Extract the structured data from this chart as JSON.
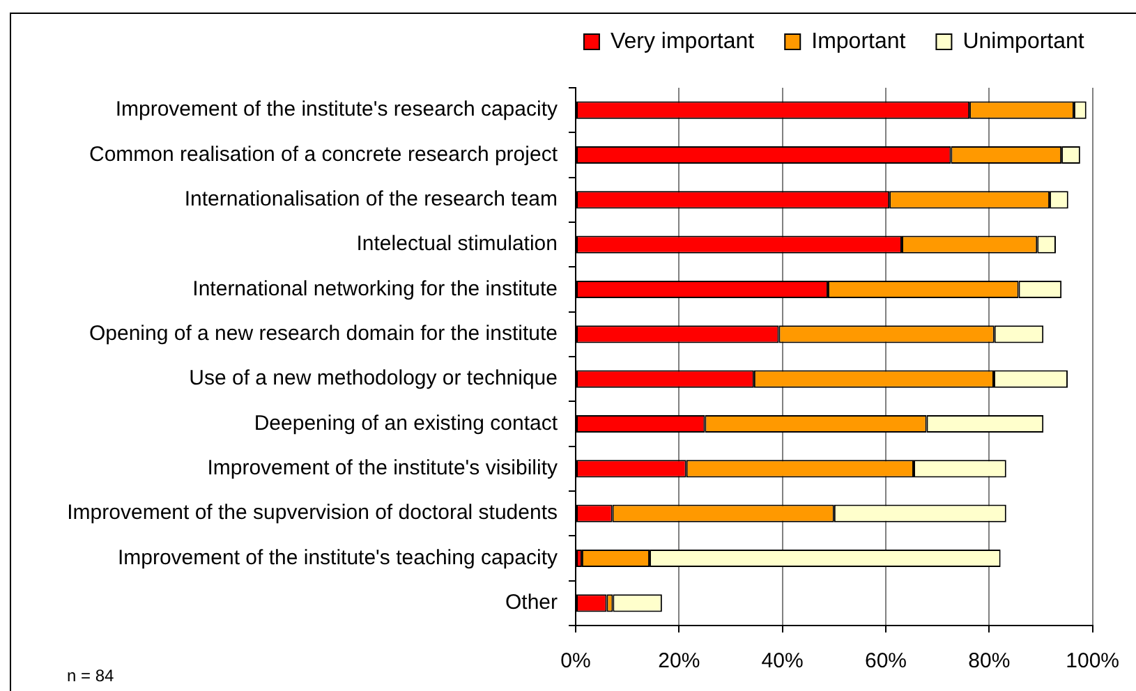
{
  "chart_data": {
    "type": "bar",
    "orientation": "horizontal",
    "stacked": true,
    "categories": [
      "Improvement of the institute's research capacity",
      "Common realisation of a concrete research project",
      "Internationalisation of the research team",
      "Intelectual stimulation",
      "International networking for the institute",
      "Opening of a new research domain for the institute",
      "Use of a new methodology or technique",
      "Deepening of an existing contact",
      "Improvement of the institute's visibility",
      "Improvement of the supvervision of doctoral students",
      "Improvement of the institute's teaching capacity",
      "Other"
    ],
    "series": [
      {
        "name": "Very important",
        "color": "#ff0000",
        "values": [
          76.2,
          72.6,
          60.7,
          63.1,
          48.8,
          39.3,
          34.5,
          25.0,
          21.4,
          7.1,
          1.2,
          6.0
        ]
      },
      {
        "name": "Important",
        "color": "#ff9900",
        "values": [
          20.2,
          21.4,
          31.0,
          26.2,
          36.9,
          41.7,
          46.4,
          42.9,
          44.0,
          42.9,
          13.1,
          1.2
        ]
      },
      {
        "name": "Unimportant",
        "color": "#ffffcc",
        "values": [
          2.4,
          3.6,
          3.6,
          3.6,
          8.3,
          9.5,
          14.3,
          22.6,
          17.9,
          33.3,
          67.9,
          9.5
        ]
      }
    ],
    "xlim": [
      0,
      100
    ],
    "xticks": [
      {
        "value": 0,
        "label": "0%"
      },
      {
        "value": 20,
        "label": "20%"
      },
      {
        "value": 40,
        "label": "40%"
      },
      {
        "value": 60,
        "label": "60%"
      },
      {
        "value": 80,
        "label": "80%"
      },
      {
        "value": 100,
        "label": "100%"
      }
    ],
    "grid": "x",
    "legend": "top",
    "annotations": [
      "n = 84"
    ]
  }
}
